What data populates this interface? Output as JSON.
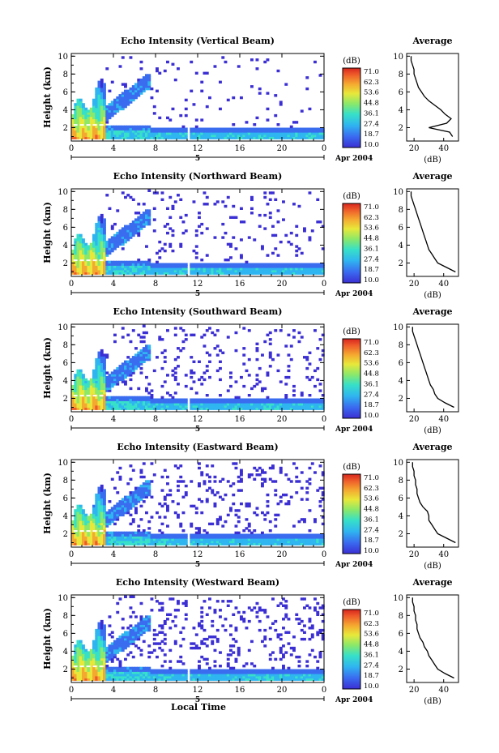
{
  "figure": {
    "date_label": "Apr 2004",
    "day_label": "5",
    "bottom_xlabel": "Local Time"
  },
  "chart_data": [
    {
      "type": "heatmap",
      "title": "Echo Intensity (Vertical Beam)",
      "ylabel": "Height (km)",
      "x_ticks": [
        "0",
        "4",
        "8",
        "12",
        "16",
        "20",
        "0"
      ],
      "y_ticks": [
        "2",
        "4",
        "6",
        "8",
        "10"
      ],
      "xlim": [
        0,
        24
      ],
      "ylim": [
        0.5,
        10.3
      ],
      "colorbar_label": "(dB)",
      "colorbar_ticks": [
        "71.0",
        "62.3",
        "53.6",
        "44.8",
        "36.1",
        "27.4",
        "18.7",
        "10.0"
      ],
      "profile": {
        "title": "Average",
        "xlabel": "(dB)",
        "x_ticks": [
          "20",
          "40"
        ],
        "y_ticks": [
          "2",
          "4",
          "6",
          "8",
          "10"
        ],
        "xlim": [
          15,
          50
        ],
        "ylim": [
          0.5,
          10.3
        ],
        "heights": [
          1,
          1.5,
          2,
          2.5,
          3,
          3.5,
          4,
          4.5,
          5,
          5.5,
          6,
          6.5,
          7,
          7.5,
          8,
          8.5,
          9,
          9.5,
          10
        ],
        "values": [
          46,
          44,
          30,
          42,
          45,
          41,
          38,
          34,
          30,
          27,
          25,
          23,
          22,
          21,
          20,
          20,
          19,
          18,
          18
        ]
      }
    },
    {
      "type": "heatmap",
      "title": "Echo Intensity (Northward Beam)",
      "ylabel": "Height (km)",
      "x_ticks": [
        "0",
        "4",
        "8",
        "12",
        "16",
        "20",
        "0"
      ],
      "y_ticks": [
        "2",
        "4",
        "6",
        "8",
        "10"
      ],
      "xlim": [
        0,
        24
      ],
      "ylim": [
        0.5,
        10.3
      ],
      "colorbar_label": "(dB)",
      "colorbar_ticks": [
        "71.0",
        "62.3",
        "53.6",
        "44.8",
        "36.1",
        "27.4",
        "18.7",
        "10.0"
      ],
      "profile": {
        "title": "Average",
        "xlabel": "(dB)",
        "x_ticks": [
          "20",
          "40"
        ],
        "y_ticks": [
          "2",
          "4",
          "6",
          "8",
          "10"
        ],
        "xlim": [
          15,
          50
        ],
        "ylim": [
          0.5,
          10.3
        ],
        "heights": [
          1,
          1.5,
          2,
          2.5,
          3,
          3.5,
          4,
          4.5,
          5,
          5.5,
          6,
          6.5,
          7,
          7.5,
          8,
          8.5,
          9,
          9.5,
          10
        ],
        "values": [
          48,
          42,
          36,
          34,
          32,
          30,
          29,
          28,
          27,
          26,
          25,
          24,
          23,
          22,
          21,
          20,
          19,
          18,
          18
        ]
      }
    },
    {
      "type": "heatmap",
      "title": "Echo Intensity (Southward Beam)",
      "ylabel": "Height (km)",
      "x_ticks": [
        "0",
        "4",
        "8",
        "12",
        "16",
        "20",
        "0"
      ],
      "y_ticks": [
        "2",
        "4",
        "6",
        "8",
        "10"
      ],
      "xlim": [
        0,
        24
      ],
      "ylim": [
        0.5,
        10.3
      ],
      "colorbar_label": "(dB)",
      "colorbar_ticks": [
        "71.0",
        "62.3",
        "53.6",
        "44.8",
        "36.1",
        "27.4",
        "18.7",
        "10.0"
      ],
      "profile": {
        "title": "Average",
        "xlabel": "(dB)",
        "x_ticks": [
          "20",
          "40"
        ],
        "y_ticks": [
          "2",
          "4",
          "6",
          "8",
          "10"
        ],
        "xlim": [
          15,
          50
        ],
        "ylim": [
          0.5,
          10.3
        ],
        "heights": [
          1,
          1.5,
          2,
          2.5,
          3,
          3.5,
          4,
          4.5,
          5,
          5.5,
          6,
          6.5,
          7,
          7.5,
          8,
          8.5,
          9,
          9.5,
          10
        ],
        "values": [
          47,
          41,
          36,
          34,
          33,
          31,
          30,
          29,
          28,
          27,
          26,
          25,
          24,
          23,
          22,
          21,
          20,
          19,
          19
        ]
      }
    },
    {
      "type": "heatmap",
      "title": "Echo Intensity (Eastward Beam)",
      "ylabel": "Height (km)",
      "x_ticks": [
        "0",
        "4",
        "8",
        "12",
        "16",
        "20",
        "0"
      ],
      "y_ticks": [
        "2",
        "4",
        "6",
        "8",
        "10"
      ],
      "xlim": [
        0,
        24
      ],
      "ylim": [
        0.5,
        10.3
      ],
      "colorbar_label": "(dB)",
      "colorbar_ticks": [
        "71.0",
        "62.3",
        "53.6",
        "44.8",
        "36.1",
        "27.4",
        "18.7",
        "10.0"
      ],
      "profile": {
        "title": "Average",
        "xlabel": "(dB)",
        "x_ticks": [
          "20",
          "40"
        ],
        "y_ticks": [
          "2",
          "4",
          "6",
          "8",
          "10"
        ],
        "xlim": [
          15,
          50
        ],
        "ylim": [
          0.5,
          10.3
        ],
        "heights": [
          1,
          1.5,
          2,
          2.5,
          3,
          3.5,
          4,
          4.5,
          5,
          5.5,
          6,
          6.5,
          7,
          7.5,
          8,
          8.5,
          9,
          9.5,
          10
        ],
        "values": [
          48,
          42,
          36,
          34,
          32,
          30,
          30,
          29,
          26,
          24,
          23,
          22,
          22,
          21,
          21,
          20,
          20,
          19,
          19
        ]
      }
    },
    {
      "type": "heatmap",
      "title": "Echo Intensity (Westward Beam)",
      "ylabel": "Height (km)",
      "x_ticks": [
        "0",
        "4",
        "8",
        "12",
        "16",
        "20",
        "0"
      ],
      "y_ticks": [
        "2",
        "4",
        "6",
        "8",
        "10"
      ],
      "xlim": [
        0,
        24
      ],
      "ylim": [
        0.5,
        10.3
      ],
      "colorbar_label": "(dB)",
      "colorbar_ticks": [
        "71.0",
        "62.3",
        "53.6",
        "44.8",
        "36.1",
        "27.4",
        "18.7",
        "10.0"
      ],
      "profile": {
        "title": "Average",
        "xlabel": "(dB)",
        "x_ticks": [
          "20",
          "40"
        ],
        "y_ticks": [
          "2",
          "4",
          "6",
          "8",
          "10"
        ],
        "xlim": [
          15,
          50
        ],
        "ylim": [
          0.5,
          10.3
        ],
        "heights": [
          1,
          1.5,
          2,
          2.5,
          3,
          3.5,
          4,
          4.5,
          5,
          5.5,
          6,
          6.5,
          7,
          7.5,
          8,
          8.5,
          9,
          9.5,
          10
        ],
        "values": [
          47,
          41,
          36,
          34,
          32,
          30,
          29,
          27,
          26,
          24,
          23,
          22,
          22,
          21,
          21,
          20,
          20,
          19,
          19
        ]
      }
    }
  ]
}
